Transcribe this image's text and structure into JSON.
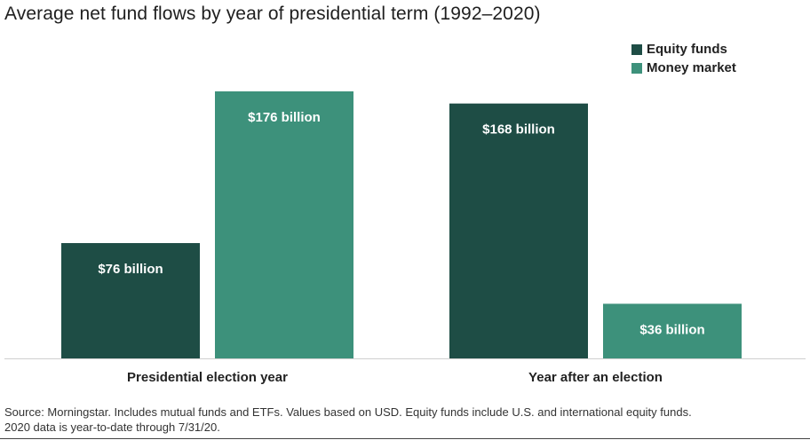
{
  "chart_data": {
    "type": "bar",
    "title": "Average net fund flows by year of presidential term (1992–2020)",
    "categories": [
      "Presidential election year",
      "Year after an election"
    ],
    "series": [
      {
        "name": "Equity funds",
        "values": [
          76,
          168
        ],
        "labels": [
          "$76 billion",
          "$168 billion"
        ],
        "color": "#1e4d45"
      },
      {
        "name": "Money market",
        "values": [
          176,
          36
        ],
        "labels": [
          "$176 billion",
          "$36 billion"
        ],
        "color": "#3d917b"
      }
    ],
    "ylim": [
      0,
      176
    ],
    "grid": false,
    "legend_position": "top-right"
  },
  "source": {
    "line1": "Source: Morningstar. Includes mutual funds and ETFs. Values based on USD. Equity funds include U.S. and international equity funds.",
    "line2": "2020 data is year-to-date through 7/31/20."
  }
}
